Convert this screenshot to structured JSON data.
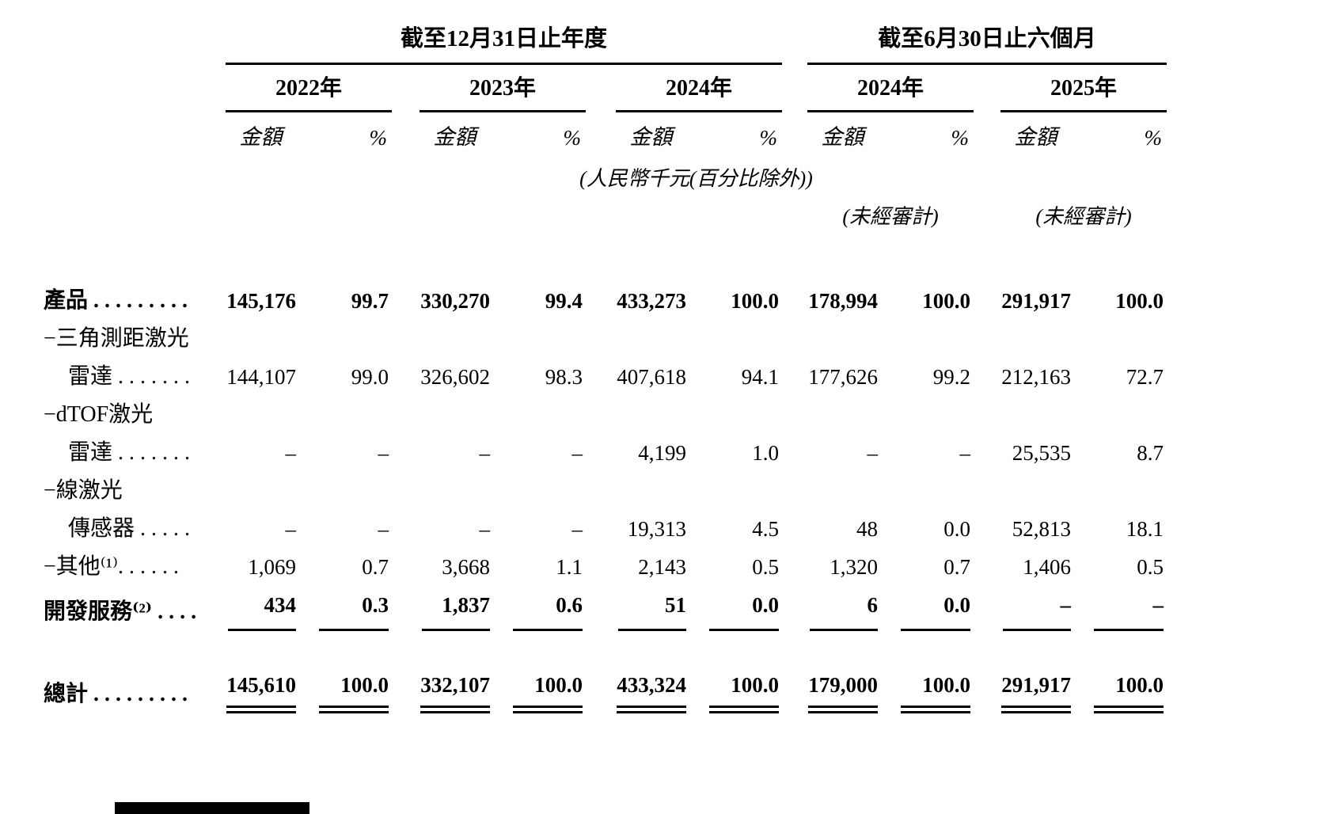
{
  "table": {
    "groups": [
      {
        "label": "截至12月31日止年度",
        "years": [
          "2022年",
          "2023年",
          "2024年"
        ]
      },
      {
        "label": "截至6月30日止六個月",
        "years": [
          "2024年",
          "2025年"
        ]
      }
    ],
    "col_headers": {
      "amount": "金額",
      "pct": "%"
    },
    "notes": {
      "currency": "(人民幣千元(百分比除外))",
      "unaudited": "(未經審計)"
    },
    "rows": [
      {
        "label_lines": [
          "產品 . . . . . . . . ."
        ],
        "values": [
          "145,176",
          "99.7",
          "330,270",
          "99.4",
          "433,273",
          "100.0",
          "178,994",
          "100.0",
          "291,917",
          "100.0"
        ]
      },
      {
        "label_lines": [
          "−三角測距激光",
          "雷達 . . . . . . ."
        ],
        "values": [
          "144,107",
          "99.0",
          "326,602",
          "98.3",
          "407,618",
          "94.1",
          "177,626",
          "99.2",
          "212,163",
          "72.7"
        ]
      },
      {
        "label_lines": [
          "−dTOF激光",
          "雷達 . . . . . . ."
        ],
        "values": [
          "–",
          "–",
          "–",
          "–",
          "4,199",
          "1.0",
          "–",
          "–",
          "25,535",
          "8.7"
        ]
      },
      {
        "label_lines": [
          "−線激光",
          "傳感器 . . . . ."
        ],
        "values": [
          "–",
          "–",
          "–",
          "–",
          "19,313",
          "4.5",
          "48",
          "0.0",
          "52,813",
          "18.1"
        ]
      },
      {
        "label_lines": [
          "−其他⁽¹⁾. . . . . ."
        ],
        "values": [
          "1,069",
          "0.7",
          "3,668",
          "1.1",
          "2,143",
          "0.5",
          "1,320",
          "0.7",
          "1,406",
          "0.5"
        ]
      },
      {
        "label_lines": [
          "開發服務⁽²⁾ . . . ."
        ],
        "values": [
          "434",
          "0.3",
          "1,837",
          "0.6",
          "51",
          "0.0",
          "6",
          "0.0",
          "–",
          "–"
        ]
      },
      {
        "label_lines": [
          "總計 . . . . . . . . ."
        ],
        "values": [
          "145,610",
          "100.0",
          "332,107",
          "100.0",
          "433,324",
          "100.0",
          "179,000",
          "100.0",
          "291,917",
          "100.0"
        ]
      }
    ]
  }
}
